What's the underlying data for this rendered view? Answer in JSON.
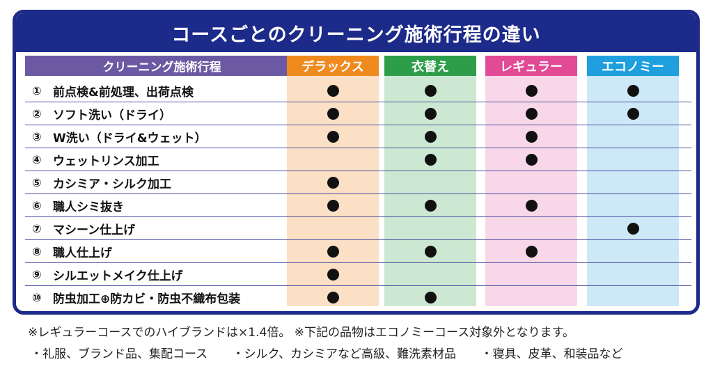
{
  "title": "コースごとのクリーニング施術行程の違い",
  "process_header": "クリーニング施術行程",
  "courses": [
    {
      "label": "デラックス",
      "head_color": "#ef8a1f",
      "body_color": "#fbe0c5"
    },
    {
      "label": "衣替え",
      "head_color": "#2e9d4a",
      "body_color": "#cde8d2"
    },
    {
      "label": "レギュラー",
      "head_color": "#e24a96",
      "body_color": "#f8d8e8"
    },
    {
      "label": "エコノミー",
      "head_color": "#1f9fde",
      "body_color": "#cde8f6"
    }
  ],
  "rows": [
    {
      "num": "①",
      "label": "前点検&前処理、出荷点検",
      "marks": [
        true,
        true,
        true,
        true
      ]
    },
    {
      "num": "②",
      "label": "ソフト洗い（ドライ）",
      "marks": [
        true,
        true,
        true,
        true
      ]
    },
    {
      "num": "③",
      "label": "W洗い（ドライ&ウェット）",
      "marks": [
        true,
        true,
        true,
        false
      ]
    },
    {
      "num": "④",
      "label": "ウェットリンス加工",
      "marks": [
        false,
        true,
        true,
        false
      ]
    },
    {
      "num": "⑤",
      "label": "カシミア・シルク加工",
      "marks": [
        true,
        false,
        false,
        false
      ]
    },
    {
      "num": "⑥",
      "label": "職人シミ抜き",
      "marks": [
        true,
        true,
        true,
        false
      ]
    },
    {
      "num": "⑦",
      "label": "マシーン仕上げ",
      "marks": [
        false,
        false,
        false,
        true
      ]
    },
    {
      "num": "⑧",
      "label": "職人仕上げ",
      "marks": [
        true,
        true,
        true,
        false
      ]
    },
    {
      "num": "⑨",
      "label": "シルエットメイク仕上げ",
      "marks": [
        true,
        false,
        false,
        false
      ]
    },
    {
      "num": "⑩",
      "label": "防虫加工⊕防カビ・防虫不織布包装",
      "marks": [
        true,
        true,
        false,
        false
      ]
    }
  ],
  "notes": {
    "line1": "※レギュラーコースでのハイブランドは×1.4倍。 ※下記の品物はエコノミーコース対象外となります。",
    "line2_items": [
      "・礼服、ブランド品、集配コース",
      "・シルク、カシミアなど高級、難洗素材品",
      "・寝具、皮革、和装品など"
    ]
  }
}
